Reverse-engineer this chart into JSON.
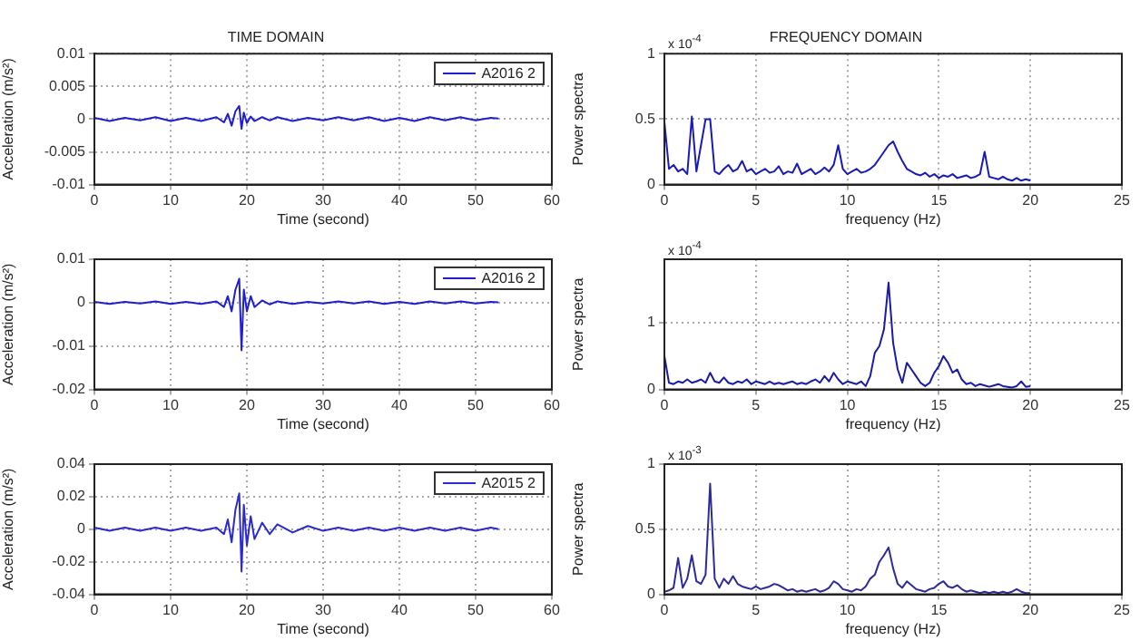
{
  "chart_data": [
    {
      "type": "line",
      "title": "TIME DOMAIN",
      "xlabel": "Time (second)",
      "ylabel": "Acceleration (m/s²)",
      "legend": "top right",
      "grid": true,
      "marker": "none",
      "line_style": "solid",
      "xlim": [
        0,
        60
      ],
      "xticks": [
        0,
        10,
        20,
        30,
        40,
        50,
        60
      ],
      "ylim": [
        -0.01,
        0.01
      ],
      "yticks": [
        -0.01,
        -0.005,
        0,
        0.005,
        0.01
      ],
      "x": [
        0,
        2,
        4,
        6,
        8,
        10,
        12,
        14,
        16,
        17,
        17.5,
        18,
        18.5,
        19,
        19.3,
        19.6,
        20,
        20.5,
        21,
        22,
        23,
        24,
        26,
        28,
        30,
        32,
        34,
        36,
        38,
        40,
        42,
        44,
        46,
        48,
        50,
        52,
        53
      ],
      "series": [
        {
          "name": "A2016 2",
          "color": "#1f1fd0",
          "values": [
            0.0002,
            -0.0003,
            0.0002,
            -0.0002,
            0.0003,
            -0.0003,
            0.0002,
            -0.0003,
            0.0003,
            -0.0005,
            0.0008,
            -0.001,
            0.0012,
            0.002,
            -0.0015,
            0.001,
            -0.0006,
            0.0004,
            -0.0003,
            0.0003,
            -0.0002,
            0.0003,
            -0.0003,
            0.0002,
            -0.0002,
            0.0003,
            -0.0002,
            0.0003,
            -0.0003,
            0.0002,
            -0.0003,
            0.0003,
            -0.0002,
            0.0003,
            -0.0002,
            0.0002,
            0.0001
          ]
        }
      ]
    },
    {
      "type": "line",
      "title": "FREQUENCY DOMAIN",
      "xlabel": "frequency (Hz)",
      "ylabel": "Power spectra",
      "annotations": [
        "x 10$^{-4}$"
      ],
      "grid": true,
      "marker": "none",
      "line_style": "solid",
      "xlim": [
        0,
        25
      ],
      "xticks": [
        0,
        5,
        10,
        15,
        20,
        25
      ],
      "ylim": [
        0,
        1
      ],
      "yticks": [
        0,
        0.5,
        1
      ],
      "x": [
        0,
        0.25,
        0.5,
        0.75,
        1,
        1.25,
        1.5,
        1.75,
        2,
        2.25,
        2.5,
        2.75,
        3,
        3.25,
        3.5,
        3.75,
        4,
        4.25,
        4.5,
        4.75,
        5,
        5.25,
        5.5,
        5.75,
        6,
        6.25,
        6.5,
        6.75,
        7,
        7.25,
        7.5,
        7.75,
        8,
        8.25,
        8.5,
        8.75,
        9,
        9.25,
        9.5,
        9.75,
        10,
        10.25,
        10.5,
        10.75,
        11,
        11.25,
        11.5,
        11.75,
        12,
        12.25,
        12.5,
        12.75,
        13,
        13.25,
        13.5,
        13.75,
        14,
        14.25,
        14.5,
        14.75,
        15,
        15.25,
        15.5,
        15.75,
        16,
        16.25,
        16.5,
        16.75,
        17,
        17.25,
        17.5,
        17.75,
        18,
        18.25,
        18.5,
        18.75,
        19,
        19.25,
        19.5,
        19.75,
        20
      ],
      "series": [
        {
          "color": "#1a1ab8",
          "values": [
            0.48,
            0.12,
            0.15,
            0.1,
            0.12,
            0.08,
            0.52,
            0.1,
            0.3,
            0.5,
            0.5,
            0.1,
            0.08,
            0.12,
            0.15,
            0.1,
            0.12,
            0.18,
            0.1,
            0.12,
            0.08,
            0.1,
            0.12,
            0.09,
            0.1,
            0.14,
            0.08,
            0.1,
            0.09,
            0.16,
            0.08,
            0.1,
            0.12,
            0.08,
            0.1,
            0.13,
            0.1,
            0.15,
            0.3,
            0.12,
            0.08,
            0.1,
            0.12,
            0.09,
            0.1,
            0.12,
            0.15,
            0.2,
            0.25,
            0.3,
            0.33,
            0.25,
            0.18,
            0.12,
            0.1,
            0.08,
            0.07,
            0.09,
            0.06,
            0.08,
            0.05,
            0.07,
            0.06,
            0.08,
            0.05,
            0.06,
            0.07,
            0.05,
            0.06,
            0.08,
            0.25,
            0.06,
            0.05,
            0.04,
            0.06,
            0.04,
            0.03,
            0.05,
            0.03,
            0.04,
            0.03
          ]
        }
      ]
    },
    {
      "type": "line",
      "xlabel": "Time (second)",
      "ylabel": "Acceleration (m/s²)",
      "legend": "top right",
      "grid": true,
      "marker": "none",
      "line_style": "solid",
      "xlim": [
        0,
        60
      ],
      "xticks": [
        0,
        10,
        20,
        30,
        40,
        50,
        60
      ],
      "ylim": [
        -0.02,
        0.01
      ],
      "yticks": [
        -0.02,
        -0.01,
        0,
        0.01
      ],
      "x": [
        0,
        2,
        4,
        6,
        8,
        10,
        12,
        14,
        16,
        17,
        17.5,
        18,
        18.5,
        19,
        19.3,
        19.6,
        20,
        20.5,
        21,
        22,
        23,
        24,
        26,
        28,
        30,
        32,
        34,
        36,
        38,
        40,
        42,
        44,
        46,
        48,
        50,
        52,
        53
      ],
      "series": [
        {
          "name": "A2016 2",
          "color": "#1f1fd0",
          "values": [
            0.0002,
            -0.0003,
            0.0002,
            -0.0002,
            0.0003,
            -0.0003,
            0.0002,
            -0.0003,
            0.0003,
            -0.001,
            0.0015,
            -0.002,
            0.003,
            0.0055,
            -0.011,
            0.003,
            -0.002,
            0.0015,
            -0.001,
            0.0005,
            -0.0004,
            0.0003,
            -0.0003,
            0.0002,
            -0.0002,
            0.0003,
            -0.0002,
            0.0003,
            -0.0003,
            0.0002,
            -0.0003,
            0.0003,
            -0.0002,
            0.0003,
            -0.0002,
            0.0002,
            0.0001
          ]
        }
      ]
    },
    {
      "type": "line",
      "xlabel": "frequency (Hz)",
      "ylabel": "Power spectra",
      "annotations": [
        "x 10$^{-4}$"
      ],
      "grid": true,
      "marker": "none",
      "line_style": "solid",
      "xlim": [
        0,
        25
      ],
      "xticks": [
        0,
        5,
        10,
        15,
        20,
        25
      ],
      "ylim": [
        0,
        1.95
      ],
      "yticks": [
        0,
        1
      ],
      "x": [
        0,
        0.25,
        0.5,
        0.75,
        1,
        1.25,
        1.5,
        1.75,
        2,
        2.25,
        2.5,
        2.75,
        3,
        3.25,
        3.5,
        3.75,
        4,
        4.25,
        4.5,
        4.75,
        5,
        5.25,
        5.5,
        5.75,
        6,
        6.25,
        6.5,
        6.75,
        7,
        7.25,
        7.5,
        7.75,
        8,
        8.25,
        8.5,
        8.75,
        9,
        9.25,
        9.5,
        9.75,
        10,
        10.25,
        10.5,
        10.75,
        11,
        11.25,
        11.5,
        11.75,
        12,
        12.25,
        12.5,
        12.75,
        13,
        13.25,
        13.5,
        13.75,
        14,
        14.25,
        14.5,
        14.75,
        15,
        15.25,
        15.5,
        15.75,
        16,
        16.25,
        16.5,
        16.75,
        17,
        17.25,
        17.5,
        17.75,
        18,
        18.25,
        18.5,
        18.75,
        19,
        19.25,
        19.5,
        19.75,
        20
      ],
      "series": [
        {
          "color": "#1a1aa8",
          "values": [
            0.5,
            0.1,
            0.08,
            0.12,
            0.1,
            0.15,
            0.1,
            0.12,
            0.15,
            0.1,
            0.25,
            0.12,
            0.1,
            0.18,
            0.1,
            0.08,
            0.12,
            0.1,
            0.15,
            0.08,
            0.12,
            0.1,
            0.08,
            0.12,
            0.08,
            0.1,
            0.08,
            0.1,
            0.12,
            0.08,
            0.1,
            0.08,
            0.12,
            0.15,
            0.1,
            0.2,
            0.12,
            0.25,
            0.15,
            0.08,
            0.12,
            0.1,
            0.08,
            0.12,
            0.05,
            0.2,
            0.55,
            0.65,
            0.9,
            1.6,
            0.7,
            0.3,
            0.1,
            0.4,
            0.3,
            0.2,
            0.1,
            0.05,
            0.1,
            0.25,
            0.35,
            0.5,
            0.4,
            0.25,
            0.3,
            0.15,
            0.08,
            0.1,
            0.05,
            0.08,
            0.06,
            0.04,
            0.06,
            0.08,
            0.05,
            0.04,
            0.03,
            0.05,
            0.12,
            0.04,
            0.05
          ]
        }
      ]
    },
    {
      "type": "line",
      "xlabel": "Time (second)",
      "ylabel": "Acceleration (m/s²)",
      "legend": "top right",
      "grid": true,
      "marker": "none",
      "line_style": "solid",
      "xlim": [
        0,
        60
      ],
      "xticks": [
        0,
        10,
        20,
        30,
        40,
        50,
        60
      ],
      "ylim": [
        -0.04,
        0.04
      ],
      "yticks": [
        -0.04,
        -0.02,
        0,
        0.02,
        0.04
      ],
      "x": [
        0,
        2,
        4,
        6,
        8,
        10,
        12,
        14,
        16,
        17,
        17.5,
        18,
        18.5,
        19,
        19.3,
        19.6,
        20,
        20.5,
        21,
        22,
        23,
        24,
        26,
        28,
        30,
        32,
        34,
        36,
        38,
        40,
        42,
        44,
        46,
        48,
        50,
        52,
        53
      ],
      "series": [
        {
          "name": "A2015 2",
          "color": "#2a2ad0",
          "values": [
            0.001,
            -0.001,
            0.001,
            -0.001,
            0.001,
            -0.001,
            0.001,
            -0.001,
            0.001,
            -0.003,
            0.006,
            -0.008,
            0.012,
            0.022,
            -0.026,
            0.015,
            -0.01,
            0.008,
            -0.006,
            0.004,
            -0.003,
            0.003,
            -0.002,
            0.002,
            -0.001,
            0.001,
            -0.001,
            0.001,
            -0.001,
            0.001,
            -0.001,
            0.001,
            -0.001,
            0.001,
            -0.001,
            0.001,
            0
          ]
        }
      ]
    },
    {
      "type": "line",
      "xlabel": "frequency (Hz)",
      "ylabel": "Power spectra",
      "annotations": [
        "x 10$^{-3}$"
      ],
      "grid": true,
      "marker": "none",
      "line_style": "solid",
      "xlim": [
        0,
        25
      ],
      "xticks": [
        0,
        5,
        10,
        15,
        20,
        25
      ],
      "ylim": [
        0,
        1
      ],
      "yticks": [
        0,
        0.5,
        1
      ],
      "x": [
        0,
        0.25,
        0.5,
        0.75,
        1,
        1.25,
        1.5,
        1.75,
        2,
        2.25,
        2.5,
        2.75,
        3,
        3.25,
        3.5,
        3.75,
        4,
        4.25,
        4.5,
        4.75,
        5,
        5.25,
        5.5,
        5.75,
        6,
        6.25,
        6.5,
        6.75,
        7,
        7.25,
        7.5,
        7.75,
        8,
        8.25,
        8.5,
        8.75,
        9,
        9.25,
        9.5,
        9.75,
        10,
        10.25,
        10.5,
        10.75,
        11,
        11.25,
        11.5,
        11.75,
        12,
        12.25,
        12.5,
        12.75,
        13,
        13.25,
        13.5,
        13.75,
        14,
        14.25,
        14.5,
        14.75,
        15,
        15.25,
        15.5,
        15.75,
        16,
        16.25,
        16.5,
        16.75,
        17,
        17.25,
        17.5,
        17.75,
        18,
        18.25,
        18.5,
        18.75,
        19,
        19.25,
        19.5,
        19.75,
        20
      ],
      "series": [
        {
          "color": "#2b2b9a",
          "values": [
            0.02,
            0.03,
            0.05,
            0.28,
            0.05,
            0.12,
            0.3,
            0.1,
            0.08,
            0.15,
            0.85,
            0.12,
            0.05,
            0.12,
            0.08,
            0.14,
            0.08,
            0.06,
            0.05,
            0.04,
            0.06,
            0.04,
            0.05,
            0.06,
            0.08,
            0.07,
            0.05,
            0.03,
            0.04,
            0.02,
            0.03,
            0.02,
            0.03,
            0.04,
            0.02,
            0.03,
            0.05,
            0.1,
            0.08,
            0.04,
            0.03,
            0.02,
            0.04,
            0.03,
            0.06,
            0.12,
            0.15,
            0.25,
            0.3,
            0.36,
            0.2,
            0.08,
            0.05,
            0.1,
            0.07,
            0.04,
            0.03,
            0.02,
            0.04,
            0.05,
            0.08,
            0.1,
            0.06,
            0.05,
            0.07,
            0.04,
            0.02,
            0.03,
            0.02,
            0.01,
            0.02,
            0.01,
            0.02,
            0.01,
            0.02,
            0.01,
            0.02,
            0.04,
            0.02,
            0.01,
            0.01
          ]
        }
      ]
    }
  ]
}
